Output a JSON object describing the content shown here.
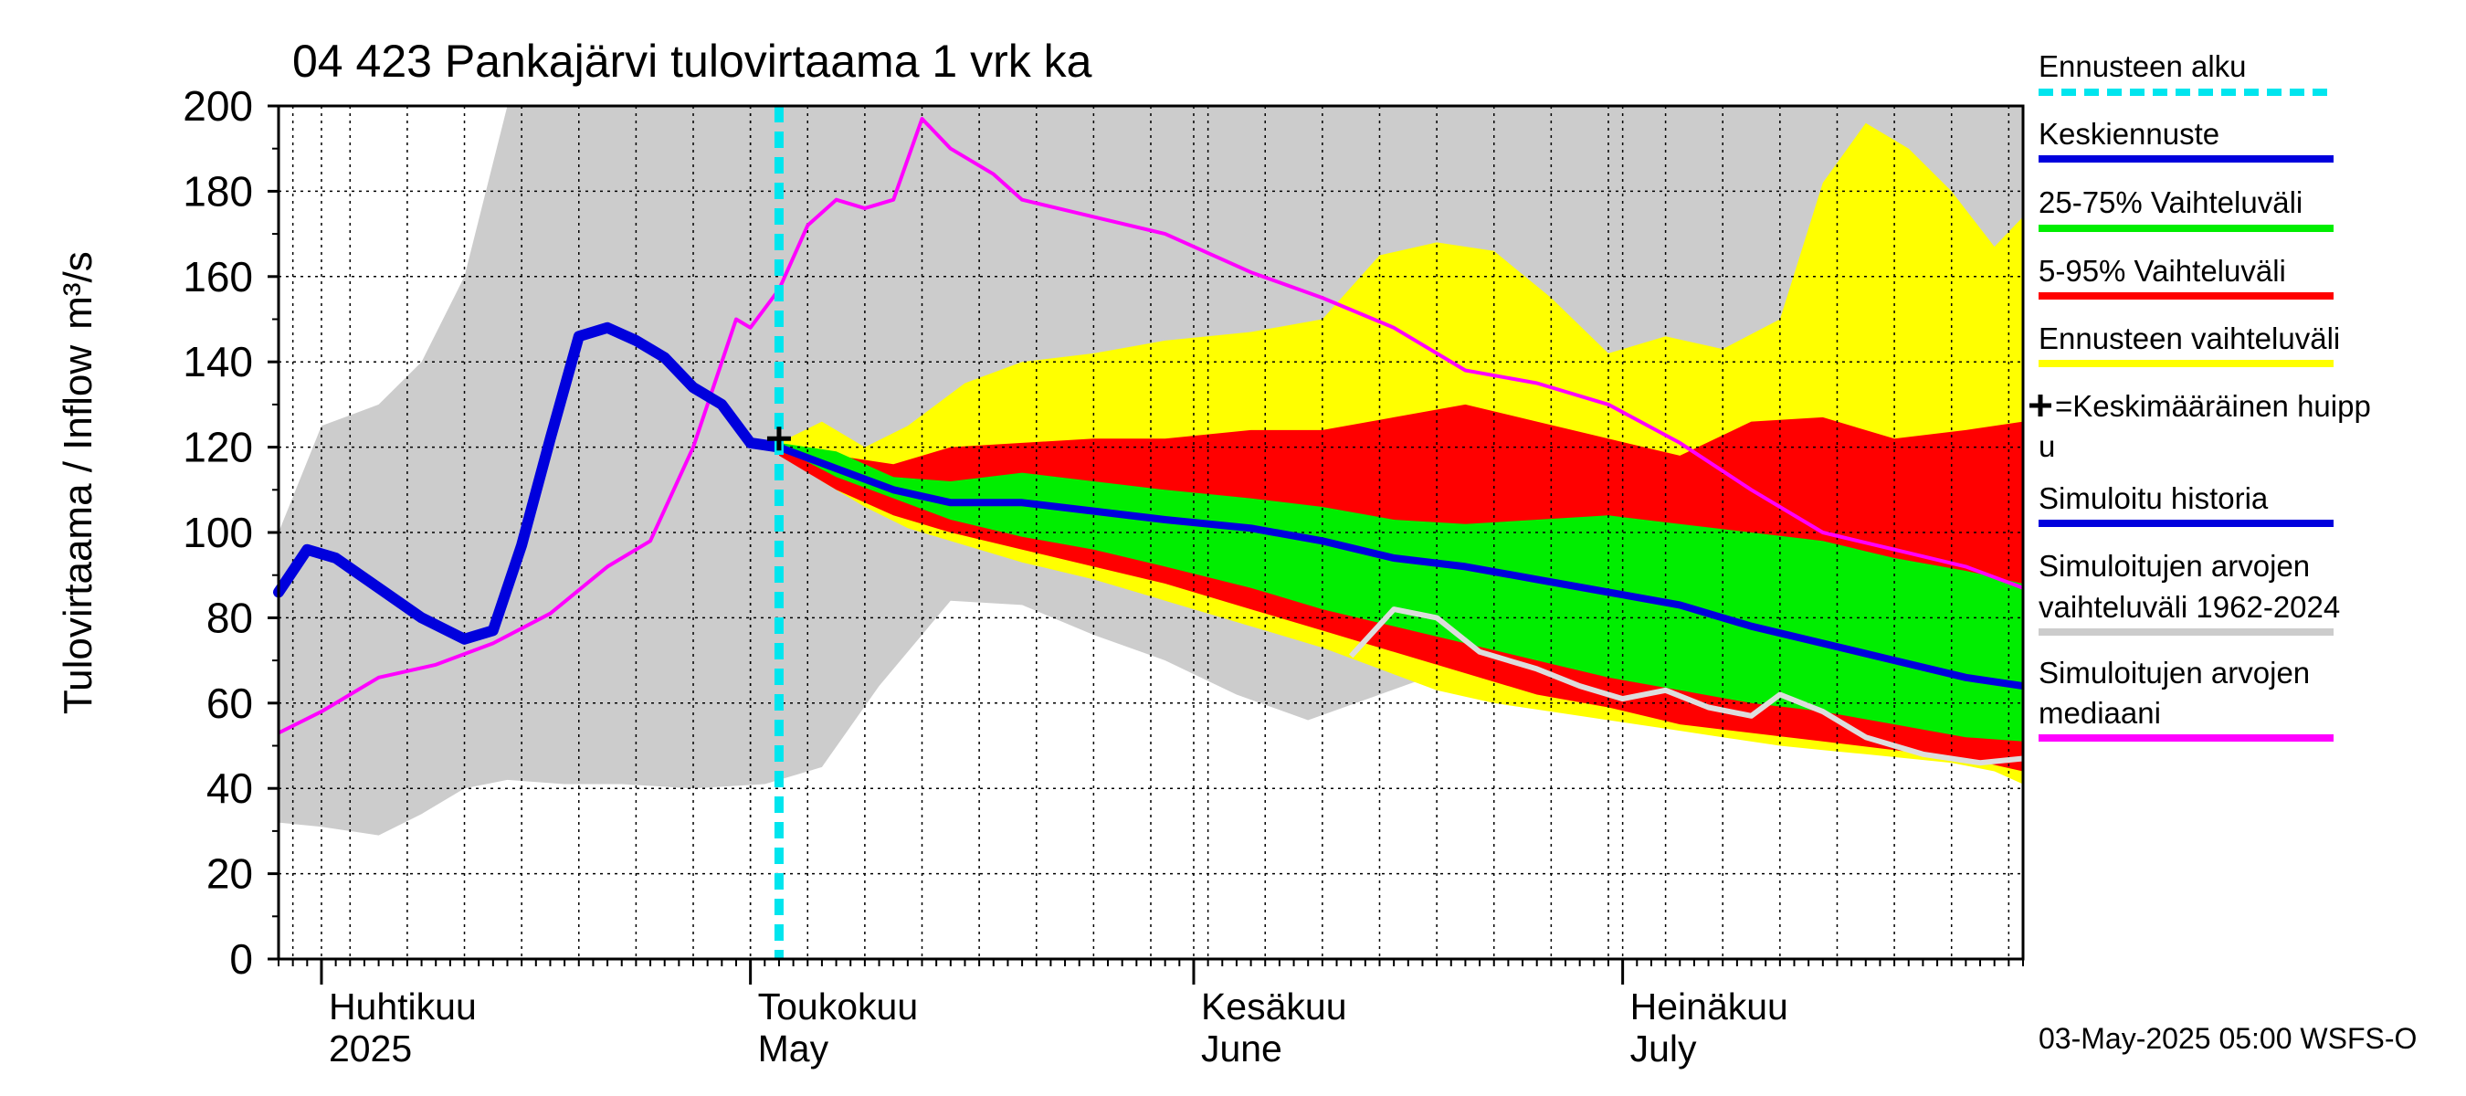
{
  "title": "04 423 Pankajärvi tulovirtaama 1 vrk ka",
  "ylabel": "Tulovirtaama / Inflow",
  "yunit": "m³/s",
  "footer": "03-May-2025 05:00 WSFS-O",
  "months": [
    {
      "top": "Huhtikuu",
      "bottom": "2025",
      "date": "2025-04-01"
    },
    {
      "top": "Toukokuu",
      "bottom": "May",
      "date": "2025-05-01"
    },
    {
      "top": "Kesäkuu",
      "bottom": "June",
      "date": "2025-06-01"
    },
    {
      "top": "Heinäkuu",
      "bottom": "July",
      "date": "2025-07-01"
    }
  ],
  "legend": [
    {
      "label": "Ennusteen alku",
      "color": "#00e5ee",
      "style": "dashed"
    },
    {
      "label": "Keskiennuste",
      "color": "#0000dd",
      "style": "line"
    },
    {
      "label": "25-75% Vaihteluväli",
      "color": "#00ee00",
      "style": "line"
    },
    {
      "label": "5-95% Vaihteluväli",
      "color": "#ff0000",
      "style": "line"
    },
    {
      "label": "Ennusteen vaihteluväli",
      "color": "#ffff00",
      "style": "line"
    },
    {
      "label": "=Keskimääräinen huipp",
      "label2": "u",
      "color": "#000000",
      "style": "cross"
    },
    {
      "label": "Simuloitu historia",
      "color": "#0000dd",
      "style": "line"
    },
    {
      "label": "Simuloitujen arvojen",
      "label2": "vaihteluväli 1962-2024",
      "color": "#cccccc",
      "style": "line"
    },
    {
      "label": "Simuloitujen arvojen",
      "label2": "mediaani",
      "color": "#ff00ff",
      "style": "line"
    }
  ],
  "chart_data": {
    "type": "area",
    "title": "04 423 Pankajärvi tulovirtaama 1 vrk ka",
    "ylabel": "Tulovirtaama / Inflow m³/s",
    "ylim": [
      0,
      200
    ],
    "yticks": [
      0,
      20,
      40,
      60,
      80,
      100,
      120,
      140,
      160,
      180,
      200
    ],
    "xlim": [
      "2025-03-29",
      "2025-07-29"
    ],
    "grid": true,
    "legend_position": "right",
    "forecast_start": "2025-05-03",
    "mean_peak": {
      "x": "2025-05-03",
      "y": 122
    },
    "colors": {
      "hist_range": "#cccccc",
      "forecast_range": "#ffff00",
      "p5_95": "#ff0000",
      "p25_75": "#00ee00",
      "mean_forecast": "#0000dd",
      "simulated_history": "#0000dd",
      "median": "#ff00ff",
      "gray_median": "#dddddd",
      "forecast_start": "#00e5ee"
    },
    "series": [
      {
        "name": "Simuloitujen arvojen vaihteluväli 1962-2024",
        "kind": "band",
        "x": [
          "2025-03-29",
          "2025-04-01",
          "2025-04-05",
          "2025-04-08",
          "2025-04-11",
          "2025-04-14",
          "2025-04-18",
          "2025-04-22",
          "2025-04-27",
          "2025-05-02",
          "2025-05-06",
          "2025-05-10",
          "2025-05-15",
          "2025-05-20",
          "2025-05-25",
          "2025-05-30",
          "2025-06-04",
          "2025-06-09",
          "2025-06-14",
          "2025-06-19",
          "2025-06-24",
          "2025-06-29",
          "2025-07-04",
          "2025-07-09",
          "2025-07-14",
          "2025-07-19",
          "2025-07-23",
          "2025-07-27",
          "2025-07-29"
        ],
        "lower": [
          32,
          31,
          29,
          34,
          40,
          42,
          41,
          41,
          40,
          41,
          45,
          64,
          84,
          83,
          76,
          70,
          62,
          56,
          62,
          68,
          64,
          58,
          56,
          56,
          54,
          52,
          50,
          48,
          47
        ],
        "upper": [
          100,
          125,
          130,
          140,
          160,
          200,
          200,
          200,
          200,
          200,
          200,
          200,
          200,
          200,
          200,
          200,
          200,
          200,
          200,
          200,
          200,
          200,
          200,
          200,
          200,
          200,
          200,
          200,
          200
        ]
      },
      {
        "name": "Ennusteen vaihteluväli",
        "kind": "band",
        "x": [
          "2025-05-03",
          "2025-05-06",
          "2025-05-09",
          "2025-05-12",
          "2025-05-16",
          "2025-05-20",
          "2025-05-25",
          "2025-05-30",
          "2025-06-05",
          "2025-06-10",
          "2025-06-14",
          "2025-06-18",
          "2025-06-22",
          "2025-06-26",
          "2025-06-30",
          "2025-07-04",
          "2025-07-08",
          "2025-07-12",
          "2025-07-15",
          "2025-07-18",
          "2025-07-21",
          "2025-07-24",
          "2025-07-27",
          "2025-07-29"
        ],
        "lower": [
          119,
          112,
          106,
          101,
          97,
          93,
          89,
          84,
          78,
          73,
          68,
          63,
          60,
          58,
          56,
          54,
          52,
          50,
          49,
          48,
          47,
          46,
          44,
          41
        ],
        "upper": [
          121,
          126,
          120,
          125,
          135,
          140,
          142,
          145,
          147,
          150,
          165,
          168,
          166,
          155,
          142,
          146,
          143,
          150,
          182,
          196,
          190,
          180,
          167,
          174
        ]
      },
      {
        "name": "5-95% Vaihteluväli",
        "kind": "band",
        "x": [
          "2025-05-03",
          "2025-05-07",
          "2025-05-11",
          "2025-05-15",
          "2025-05-20",
          "2025-05-25",
          "2025-05-30",
          "2025-06-05",
          "2025-06-10",
          "2025-06-15",
          "2025-06-20",
          "2025-06-25",
          "2025-06-30",
          "2025-07-05",
          "2025-07-10",
          "2025-07-15",
          "2025-07-20",
          "2025-07-25",
          "2025-07-29"
        ],
        "lower": [
          118,
          110,
          104,
          100,
          96,
          92,
          88,
          82,
          77,
          72,
          67,
          62,
          59,
          55,
          53,
          51,
          49,
          47,
          44
        ],
        "upper": [
          121,
          118,
          116,
          120,
          121,
          122,
          122,
          124,
          124,
          127,
          130,
          126,
          122,
          118,
          126,
          127,
          122,
          124,
          126
        ]
      },
      {
        "name": "25-75% Vaihteluväli",
        "kind": "band",
        "x": [
          "2025-05-03",
          "2025-05-07",
          "2025-05-11",
          "2025-05-15",
          "2025-05-20",
          "2025-05-25",
          "2025-05-30",
          "2025-06-05",
          "2025-06-10",
          "2025-06-15",
          "2025-06-20",
          "2025-06-25",
          "2025-06-30",
          "2025-07-05",
          "2025-07-10",
          "2025-07-15",
          "2025-07-20",
          "2025-07-25",
          "2025-07-29"
        ],
        "lower": [
          120,
          113,
          108,
          103,
          99,
          96,
          92,
          87,
          82,
          78,
          74,
          70,
          66,
          63,
          60,
          58,
          55,
          52,
          51
        ],
        "upper": [
          121,
          119,
          113,
          112,
          114,
          112,
          110,
          108,
          106,
          103,
          102,
          103,
          104,
          102,
          100,
          98,
          94,
          91,
          88
        ]
      },
      {
        "name": "Keskiennuste",
        "kind": "line",
        "x": [
          "2025-05-03",
          "2025-05-07",
          "2025-05-11",
          "2025-05-15",
          "2025-05-20",
          "2025-05-25",
          "2025-05-30",
          "2025-06-05",
          "2025-06-10",
          "2025-06-15",
          "2025-06-20",
          "2025-06-25",
          "2025-06-30",
          "2025-07-05",
          "2025-07-10",
          "2025-07-15",
          "2025-07-20",
          "2025-07-25",
          "2025-07-29"
        ],
        "values": [
          120,
          115,
          110,
          107,
          107,
          105,
          103,
          101,
          98,
          94,
          92,
          89,
          86,
          83,
          78,
          74,
          70,
          66,
          64
        ]
      },
      {
        "name": "Simuloitu historia",
        "kind": "line",
        "x": [
          "2025-03-29",
          "2025-03-31",
          "2025-04-02",
          "2025-04-05",
          "2025-04-08",
          "2025-04-11",
          "2025-04-13",
          "2025-04-15",
          "2025-04-17",
          "2025-04-19",
          "2025-04-21",
          "2025-04-23",
          "2025-04-25",
          "2025-04-27",
          "2025-04-29",
          "2025-05-01",
          "2025-05-03"
        ],
        "values": [
          86,
          96,
          94,
          87,
          80,
          75,
          77,
          97,
          122,
          146,
          148,
          145,
          141,
          134,
          130,
          121,
          120
        ]
      },
      {
        "name": "Simuloitujen arvojen mediaani",
        "kind": "line",
        "x": [
          "2025-03-29",
          "2025-04-01",
          "2025-04-05",
          "2025-04-09",
          "2025-04-13",
          "2025-04-17",
          "2025-04-21",
          "2025-04-24",
          "2025-04-27",
          "2025-04-30",
          "2025-05-01",
          "2025-05-03",
          "2025-05-05",
          "2025-05-07",
          "2025-05-09",
          "2025-05-11",
          "2025-05-13",
          "2025-05-15",
          "2025-05-18",
          "2025-05-20",
          "2025-05-25",
          "2025-05-30",
          "2025-06-05",
          "2025-06-10",
          "2025-06-15",
          "2025-06-20",
          "2025-06-25",
          "2025-06-30",
          "2025-07-05",
          "2025-07-10",
          "2025-07-15",
          "2025-07-20",
          "2025-07-25",
          "2025-07-29"
        ],
        "values": [
          53,
          58,
          66,
          69,
          74,
          81,
          92,
          98,
          120,
          150,
          148,
          157,
          172,
          178,
          176,
          178,
          197,
          190,
          184,
          178,
          174,
          170,
          161,
          155,
          148,
          138,
          135,
          130,
          121,
          110,
          100,
          96,
          92,
          87
        ]
      },
      {
        "name": "Median of simulated values (gray)",
        "kind": "line",
        "x": [
          "2025-06-12",
          "2025-06-15",
          "2025-06-18",
          "2025-06-21",
          "2025-06-25",
          "2025-06-28",
          "2025-07-01",
          "2025-07-04",
          "2025-07-07",
          "2025-07-10",
          "2025-07-12",
          "2025-07-15",
          "2025-07-18",
          "2025-07-22",
          "2025-07-26",
          "2025-07-29"
        ],
        "values": [
          71,
          82,
          80,
          72,
          68,
          64,
          61,
          63,
          59,
          57,
          62,
          58,
          52,
          48,
          46,
          47
        ]
      }
    ]
  }
}
